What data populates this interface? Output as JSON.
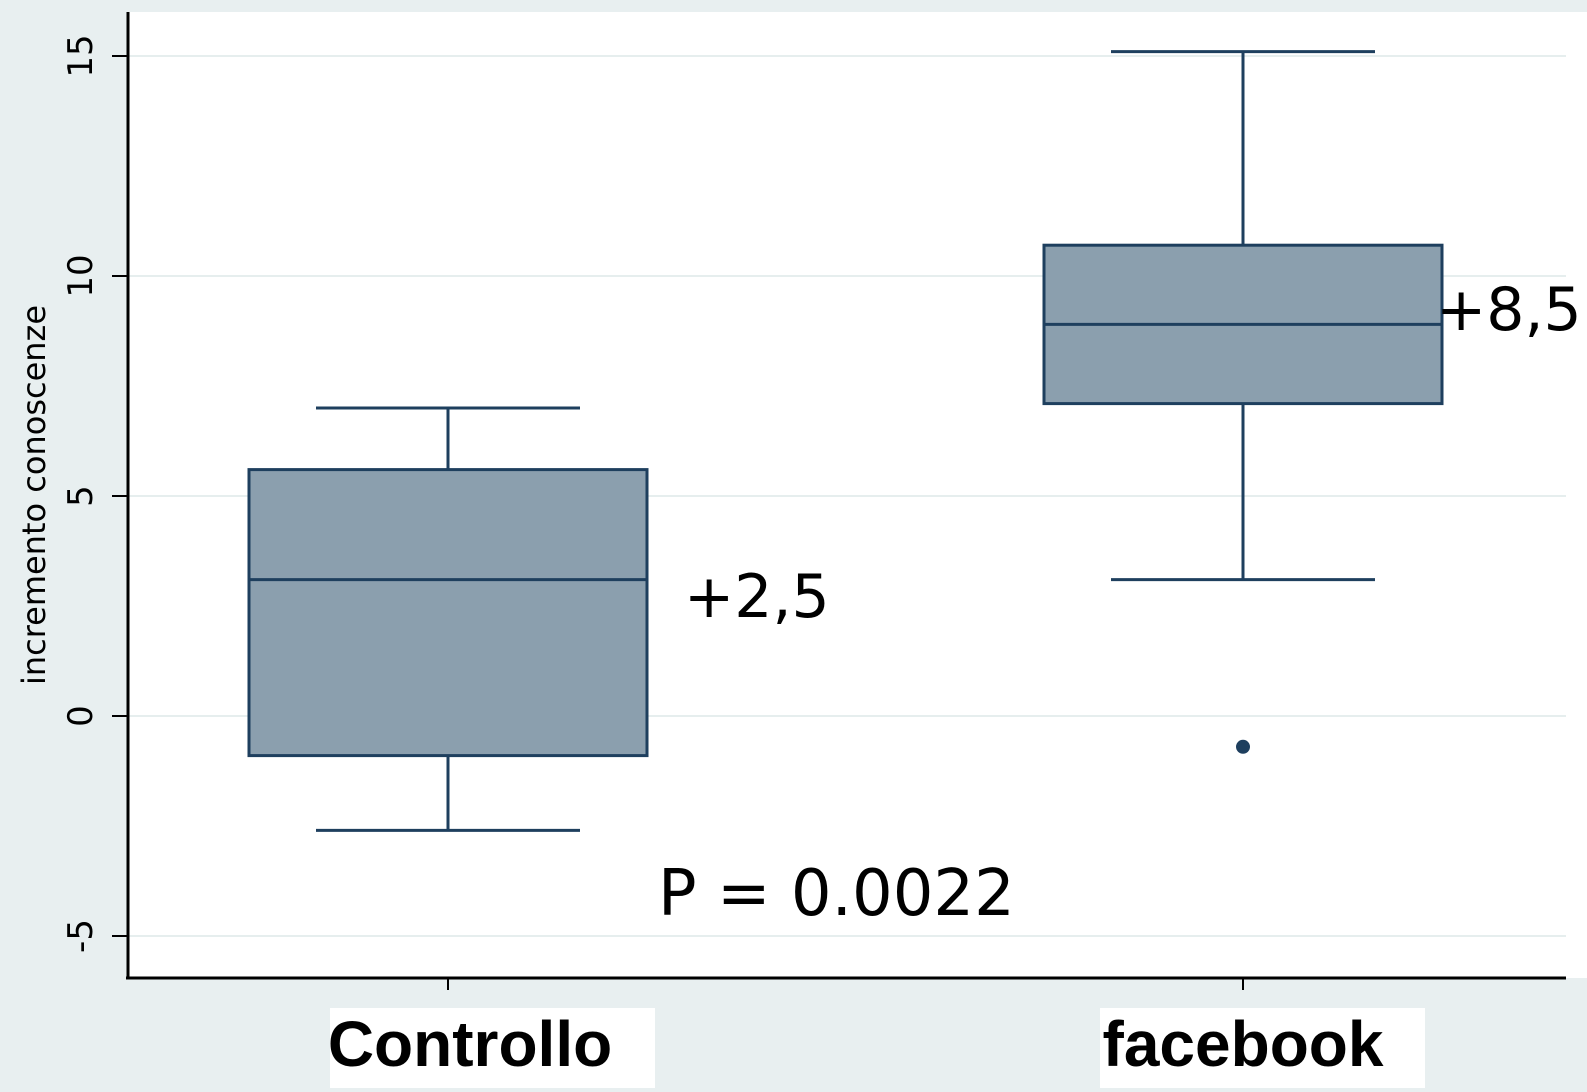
{
  "chart_data": {
    "type": "boxplot",
    "title": "",
    "ylabel": "incremento conoscenze",
    "xlabel": "",
    "ylim": [
      -6,
      16
    ],
    "yticks": [
      -5,
      0,
      5,
      10,
      15
    ],
    "ytick_labels": [
      "-5",
      "0",
      "5",
      "10",
      "15"
    ],
    "grid": true,
    "categories": [
      "Controllo",
      "facebook"
    ],
    "boxes": [
      {
        "category": "Controllo",
        "whisker_low": -2.6,
        "q1": -0.9,
        "median": 3.1,
        "q3": 5.6,
        "whisker_high": 7.0,
        "outliers": []
      },
      {
        "category": "facebook",
        "whisker_low": 3.1,
        "q1": 7.1,
        "median": 8.9,
        "q3": 10.7,
        "whisker_high": 15.1,
        "outliers": [
          -0.7
        ]
      }
    ],
    "annotations": [
      {
        "text": "+2,5",
        "box": 0
      },
      {
        "text": "+8,5",
        "box": 1
      },
      {
        "text": "P = 0.0022"
      }
    ],
    "colors": {
      "box_fill": "#8b9fae",
      "box_stroke": "#1e3f5e",
      "grid": "#e6eeee",
      "background": "#e8eff0",
      "plot_bg": "#ffffff"
    }
  }
}
